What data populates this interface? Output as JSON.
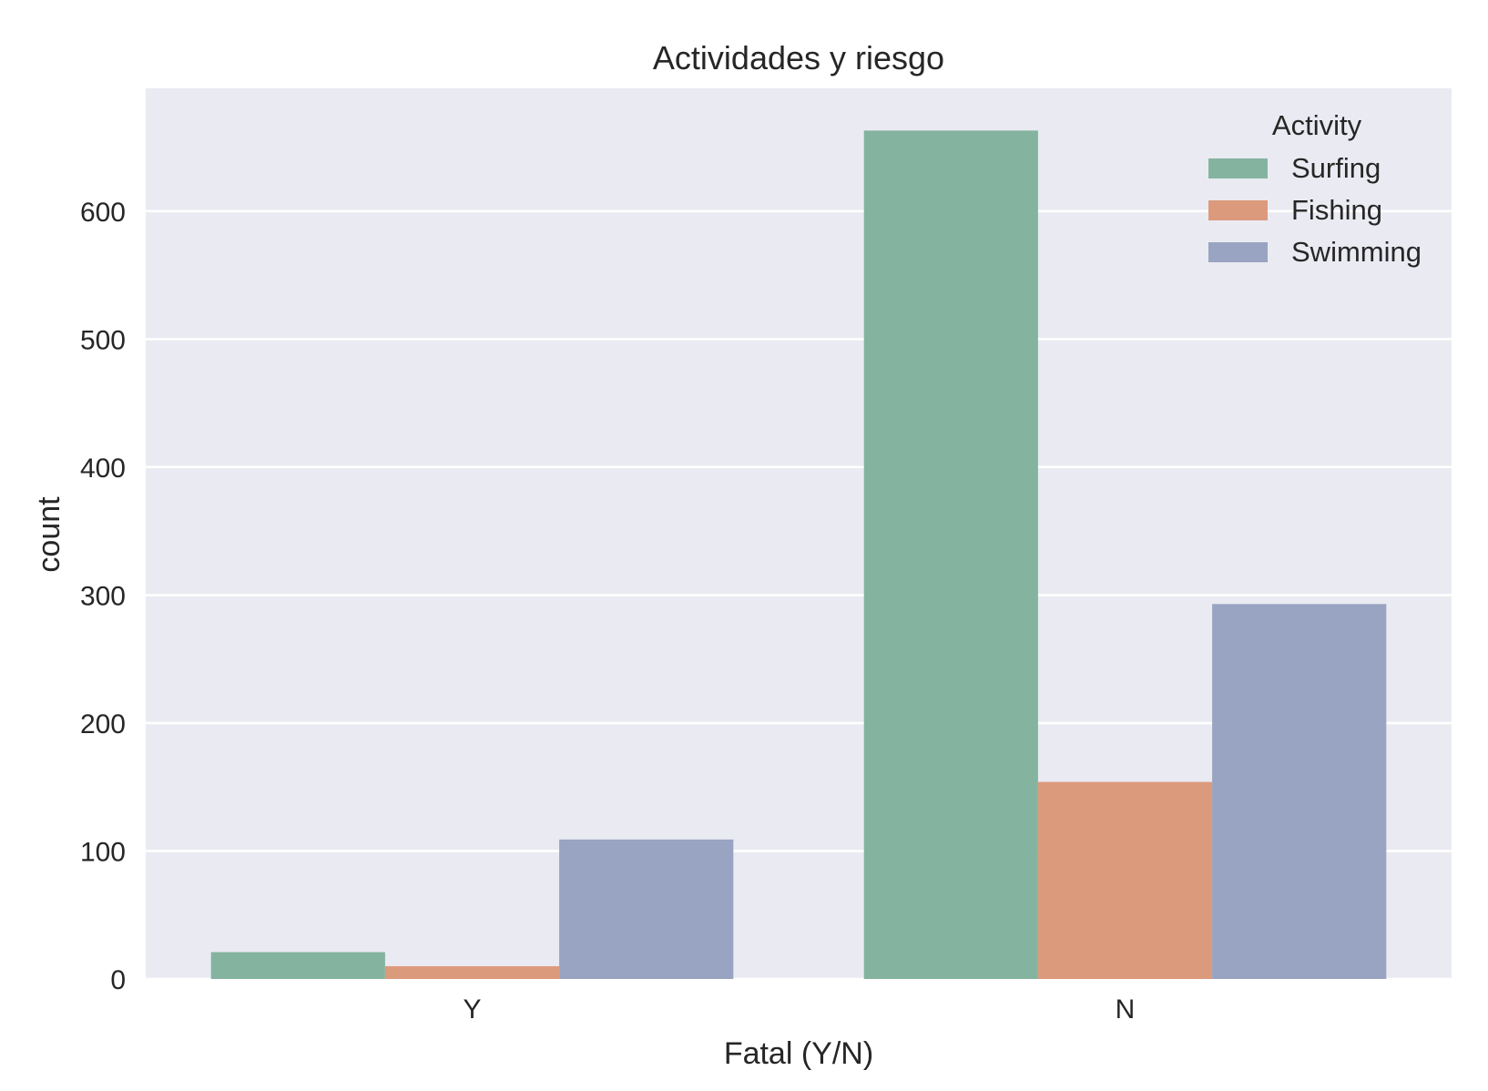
{
  "chart_data": {
    "type": "bar",
    "title": "Actividades y riesgo",
    "xlabel": "Fatal (Y/N)",
    "ylabel": "count",
    "categories": [
      "Y",
      "N"
    ],
    "series": [
      {
        "name": "Surfing",
        "values": [
          21,
          663
        ],
        "color": "#84b4a0"
      },
      {
        "name": "Fishing",
        "values": [
          10,
          154
        ],
        "color": "#dc9a7c"
      },
      {
        "name": "Swimming",
        "values": [
          109,
          293
        ],
        "color": "#98a4c1"
      }
    ],
    "ylim": [
      0,
      696
    ],
    "yticks": [
      0,
      100,
      200,
      300,
      400,
      500,
      600
    ],
    "grid": true,
    "legend": {
      "title": "Activity",
      "position": "top-right"
    },
    "style": {
      "plot_background": "#eaeaf2",
      "grid_color": "#ffffff"
    }
  }
}
